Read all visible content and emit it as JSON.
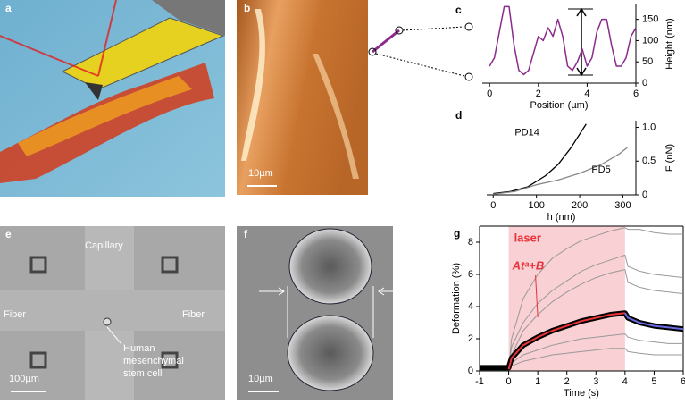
{
  "figure": {
    "panels": [
      {
        "label": "a"
      },
      {
        "label": "b",
        "scale_bar": "10µm"
      },
      {
        "label": "e",
        "texts": [
          "Capillary",
          "Fiber",
          "Fiber"
        ],
        "cell_label": [
          "Human",
          "mesenchymal",
          "stem cell"
        ],
        "scale_bar": "100µm"
      },
      {
        "label": "f",
        "scale_bar": "10µm"
      }
    ]
  },
  "chart_data": [
    {
      "type": "line",
      "panel_label": "c",
      "xlabel": "Position (µm)",
      "ylabel": "Height (nm)",
      "y_axis_side": "right",
      "frame": "open",
      "x": [
        0,
        0.2,
        0.4,
        0.6,
        0.8,
        1.0,
        1.2,
        1.4,
        1.6,
        1.8,
        2.0,
        2.2,
        2.4,
        2.6,
        2.8,
        3.0,
        3.2,
        3.4,
        3.6,
        3.8,
        4.0,
        4.2,
        4.4,
        4.6,
        4.8,
        5.0,
        5.2,
        5.4,
        5.6,
        5.8,
        6.0
      ],
      "series": [
        {
          "color": "#8b2a8b",
          "line_width": 1.5,
          "values": [
            40,
            60,
            120,
            180,
            180,
            90,
            30,
            20,
            30,
            70,
            110,
            100,
            130,
            110,
            150,
            110,
            40,
            30,
            50,
            80,
            40,
            60,
            120,
            150,
            150,
            90,
            40,
            40,
            60,
            110,
            130
          ]
        }
      ],
      "xlim": [
        -0.3,
        6
      ],
      "ylim": [
        0,
        185
      ],
      "xticks": [
        0,
        2,
        4,
        6
      ],
      "yticks": [
        0,
        50,
        100,
        150
      ]
    },
    {
      "type": "line",
      "panel_label": "d",
      "xlabel": "h (nm)",
      "ylabel": "F (nN)",
      "y_axis_side": "right",
      "frame": "open",
      "series": [
        {
          "name": "PD14",
          "color": "#000000",
          "line_width": 1.3,
          "x": [
            0,
            40,
            80,
            120,
            150,
            180,
            200,
            215
          ],
          "values": [
            0.02,
            0.05,
            0.12,
            0.28,
            0.45,
            0.7,
            0.9,
            1.05
          ]
        },
        {
          "name": "PD5",
          "color": "#888888",
          "line_width": 1.3,
          "x": [
            0,
            50,
            100,
            150,
            200,
            250,
            290,
            310
          ],
          "values": [
            0.01,
            0.05,
            0.15,
            0.22,
            0.32,
            0.45,
            0.6,
            0.7
          ]
        }
      ],
      "xlim": [
        -15,
        330
      ],
      "ylim": [
        0,
        1.1
      ],
      "xticks": [
        0,
        100,
        200,
        300
      ],
      "yticks": [
        0,
        0.5,
        {
          "value": 1,
          "label": "1.0"
        }
      ]
    },
    {
      "type": "line",
      "panel_label": "g",
      "xlabel": "Time (s)",
      "ylabel": "Deformation (%)",
      "y_axis_side": "left",
      "frame": "box",
      "highlight": {
        "label": "laser",
        "xrange": [
          0,
          4
        ],
        "color": "#f9d0d4"
      },
      "annotation": "Atᵃ+B",
      "x": [
        -1,
        -0.5,
        0,
        0.1,
        0.5,
        1,
        1.5,
        2,
        2.5,
        3,
        3.5,
        4,
        4.1,
        4.5,
        5,
        5.5,
        6
      ],
      "series": [
        {
          "color": "#999999",
          "line_width": 1,
          "values": [
            0.2,
            0.2,
            0.2,
            1.5,
            3,
            4.2,
            5,
            5.6,
            6.2,
            6.6,
            6.9,
            7.2,
            6.5,
            6.2,
            6,
            5.9,
            5.8
          ]
        },
        {
          "color": "#999999",
          "line_width": 1,
          "values": [
            0.1,
            0.1,
            0.1,
            0.5,
            1,
            1.3,
            1.6,
            1.8,
            2,
            2.1,
            2.2,
            2.3,
            2.1,
            1.9,
            1.8,
            1.7,
            1.7
          ]
        },
        {
          "color": "#999999",
          "line_width": 1,
          "values": [
            0.2,
            0.2,
            0.2,
            1,
            2.5,
            3.5,
            4.3,
            4.9,
            5.4,
            5.8,
            6.1,
            6.3,
            5.5,
            5.2,
            5,
            4.9,
            4.8
          ]
        },
        {
          "color": "#999999",
          "line_width": 1,
          "values": [
            0.1,
            0.1,
            0.1,
            2,
            4.5,
            6,
            7,
            7.6,
            8.1,
            8.4,
            8.7,
            8.9,
            8.8,
            8.8,
            8.6,
            8.5,
            8.5
          ]
        },
        {
          "color": "#999999",
          "line_width": 1,
          "values": [
            0.1,
            0.1,
            0.1,
            0.3,
            0.6,
            0.8,
            1,
            1.1,
            1.2,
            1.3,
            1.4,
            1.4,
            1.2,
            1.1,
            1.0,
            1.0,
            1.0
          ]
        },
        {
          "color": "#000000",
          "line_width": 6,
          "values": [
            0.2,
            0.2,
            0.2,
            0.8,
            1.6,
            2.1,
            2.5,
            2.8,
            3.1,
            3.3,
            3.5,
            3.6,
            3.3,
            3.0,
            2.8,
            2.7,
            2.6
          ]
        },
        {
          "color": "#e8333a",
          "line_width": 2,
          "values": [
            null,
            null,
            0.1,
            0.8,
            1.6,
            2.1,
            2.5,
            2.8,
            3.1,
            3.3,
            3.5,
            3.6,
            null,
            null,
            null,
            null,
            null
          ]
        },
        {
          "color": "#6a6ae0",
          "line_width": 2,
          "values": [
            null,
            null,
            null,
            null,
            null,
            null,
            null,
            null,
            null,
            null,
            null,
            3.6,
            3.3,
            3.0,
            2.8,
            2.7,
            2.6
          ]
        }
      ],
      "xlim": [
        -1,
        6
      ],
      "ylim": [
        0,
        9
      ],
      "xticks": [
        -1,
        0,
        1,
        2,
        3,
        4,
        5,
        6
      ],
      "yticks": [
        0,
        2,
        4,
        6,
        8
      ]
    }
  ]
}
